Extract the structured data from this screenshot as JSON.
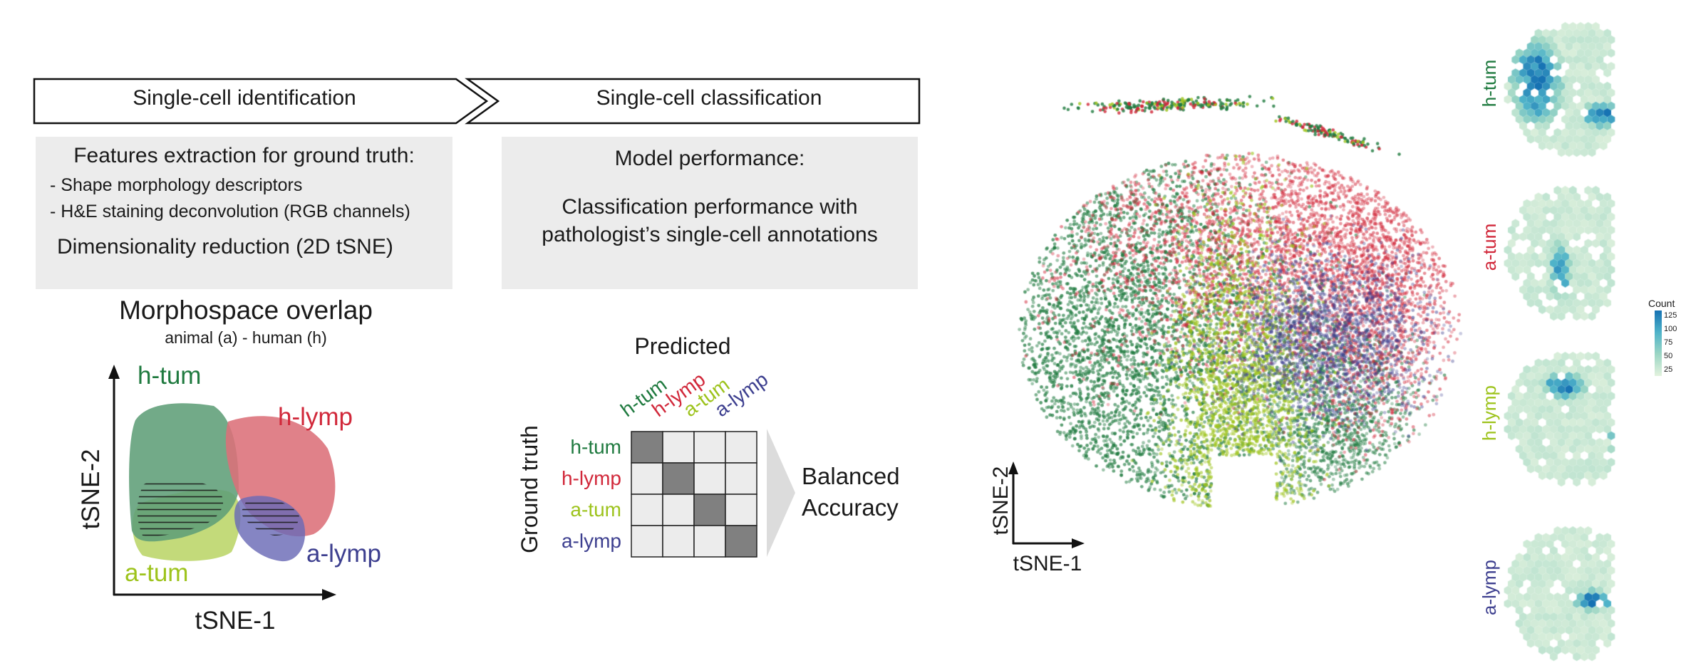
{
  "colors": {
    "h_tum": "#1f7a3f",
    "h_lymp": "#d1283a",
    "a_tum": "#9dc31c",
    "a_lymp": "#3d3f8f",
    "box_grey": "#ececec",
    "matrix_dark": "#808080",
    "matrix_light": "#ececec",
    "hex_low": "#e3f2de",
    "hex_high": "#1672b3"
  },
  "pipeline": {
    "step1": "Single-cell identification",
    "step2": "Single-cell classification"
  },
  "features_box": {
    "title": "Features extraction for ground truth:",
    "bullet1": "- Shape morphology descriptors",
    "bullet2": "- H&E staining deconvolution (RGB channels)",
    "footer": "Dimensionality reduction (2D tSNE)"
  },
  "model_box": {
    "title": "Model performance:",
    "line1": "Classification performance with",
    "line2": "pathologist’s single-cell annotations"
  },
  "morphospace": {
    "title": "Morphospace overlap",
    "subtitle": "animal (a) - human (h)",
    "xlabel": "tSNE-1",
    "ylabel": "tSNE-2",
    "labels": {
      "h_tum": "h-tum",
      "h_lymp": "h-lymp",
      "a_tum": "a-tum",
      "a_lymp": "a-lymp"
    }
  },
  "confusion": {
    "title": "Predicted",
    "ylabel": "Ground truth",
    "classes": [
      "h-tum",
      "h-lymp",
      "a-tum",
      "a-lymp"
    ],
    "result_line1": "Balanced",
    "result_line2": "Accuracy"
  },
  "tsne": {
    "xlabel": "tSNE-1",
    "ylabel": "tSNE-2"
  },
  "density": {
    "panels": [
      "h-tum",
      "a-tum",
      "h-lymp",
      "a-lymp"
    ],
    "colorbar_title": "Count",
    "colorbar_ticks": [
      "125",
      "100",
      "75",
      "50",
      "25"
    ]
  }
}
